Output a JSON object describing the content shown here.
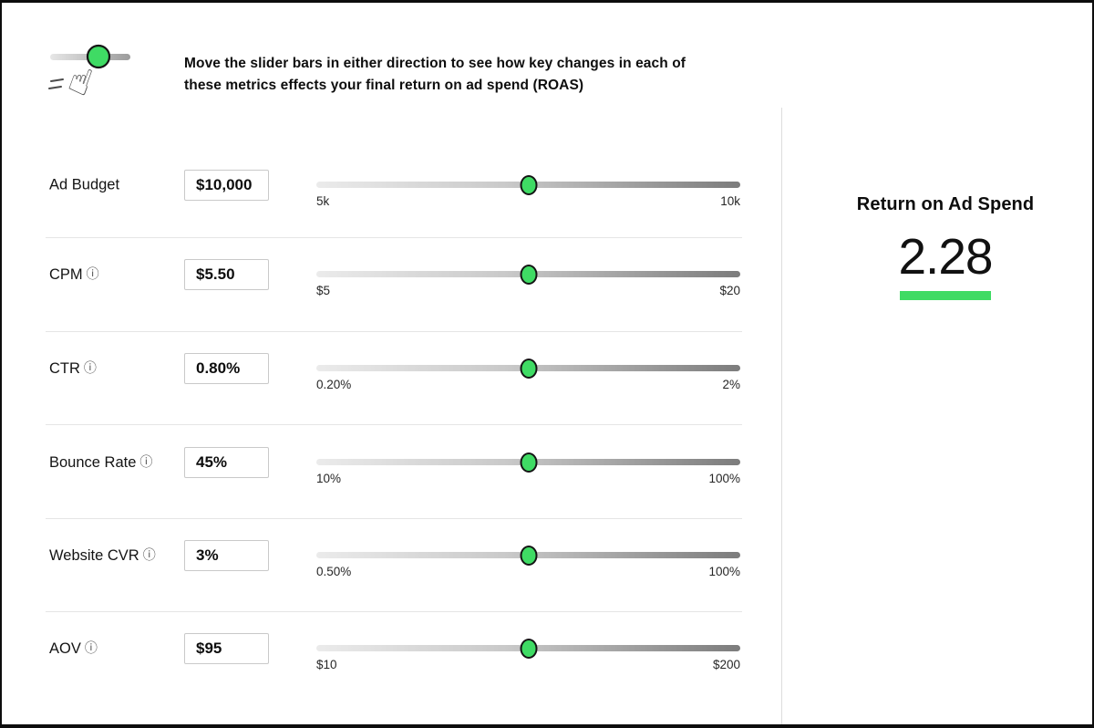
{
  "header": {
    "instruction_line1": "Move the slider bars in either direction to see how key changes in each of",
    "instruction_line2": "these metrics effects your final return on ad spend (ROAS)"
  },
  "icons": {
    "info": "ⓘ",
    "hand": "☝"
  },
  "metrics": [
    {
      "label": "Ad Budget",
      "value": "$10,000",
      "min": "5k",
      "max": "10k",
      "slider_position_pct": 50
    },
    {
      "label": "CPM",
      "value": "$5.50",
      "min": "$5",
      "max": "$20",
      "slider_position_pct": 50
    },
    {
      "label": "CTR",
      "value": "0.80%",
      "min": "0.20%",
      "max": "2%",
      "slider_position_pct": 50
    },
    {
      "label": "Bounce Rate",
      "value": "45%",
      "min": "10%",
      "max": "100%",
      "slider_position_pct": 50
    },
    {
      "label": "Website CVR",
      "value": "3%",
      "min": "0.50%",
      "max": "100%",
      "slider_position_pct": 50
    },
    {
      "label": "AOV",
      "value": "$95",
      "min": "$10",
      "max": "$200",
      "slider_position_pct": 50
    }
  ],
  "result": {
    "title": "Return on Ad Spend",
    "value": "2.28"
  },
  "colors": {
    "accent_green": "#3fdb64",
    "knob_border": "#141414",
    "track_start": "#ebebeb",
    "track_end": "#7c7c7c"
  }
}
